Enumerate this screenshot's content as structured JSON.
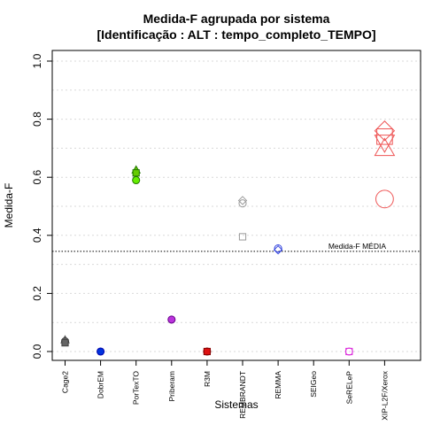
{
  "chart_data": {
    "type": "scatter",
    "title": "Medida-F agrupada por sistema",
    "subtitle": "[Identificação : ALT : tempo_completo_TEMPO]",
    "xlabel": "Sistemas",
    "ylabel": "Medida-F",
    "ylim": [
      0,
      1
    ],
    "yticks": [
      "0.0",
      "0.2",
      "0.4",
      "0.6",
      "0.8",
      "1.0"
    ],
    "grid": "horizontal-dashed",
    "categories": [
      "Cage2",
      "DobrEM",
      "PorTexTO",
      "Priberam",
      "R3M",
      "REMBRANDT",
      "REMMA",
      "SEIGeo",
      "SeRELeP",
      "XIP-L2F/Xerox"
    ],
    "reference_line": {
      "value": 0.345,
      "label": "Medida-F MÉDIA"
    },
    "points": [
      {
        "category": "Cage2",
        "y": 0.04,
        "marker": "triangle",
        "color": "#555555",
        "fill": "#777777"
      },
      {
        "category": "Cage2",
        "y": 0.035,
        "marker": "circle",
        "color": "#444444",
        "fill": "#666666"
      },
      {
        "category": "Cage2",
        "y": 0.03,
        "marker": "square",
        "color": "#444444",
        "fill": "#666666"
      },
      {
        "category": "DobrEM",
        "y": 0.0,
        "marker": "circle",
        "color": "#0000aa",
        "fill": "#0033dd"
      },
      {
        "category": "PorTexTO",
        "y": 0.625,
        "marker": "triangle",
        "color": "#227700",
        "fill": "#66cc00"
      },
      {
        "category": "PorTexTO",
        "y": 0.615,
        "marker": "square",
        "color": "#227700",
        "fill": "#66cc00"
      },
      {
        "category": "PorTexTO",
        "y": 0.59,
        "marker": "circle",
        "color": "#227700",
        "fill": "#66ee00"
      },
      {
        "category": "Priberam",
        "y": 0.11,
        "marker": "circle",
        "color": "#660088",
        "fill": "#bb33dd"
      },
      {
        "category": "R3M",
        "y": 0.0,
        "marker": "circle",
        "color": "#880000",
        "fill": "#dd1111"
      },
      {
        "category": "R3M",
        "y": 0.0,
        "marker": "square",
        "color": "#880000",
        "fill": "#dd1111"
      },
      {
        "category": "REMBRANDT",
        "y": 0.52,
        "marker": "diamond",
        "color": "#999999",
        "fill": "none"
      },
      {
        "category": "REMBRANDT",
        "y": 0.51,
        "marker": "circle",
        "color": "#999999",
        "fill": "none"
      },
      {
        "category": "REMBRANDT",
        "y": 0.395,
        "marker": "square",
        "color": "#999999",
        "fill": "none"
      },
      {
        "category": "REMMA",
        "y": 0.355,
        "marker": "circle",
        "color": "#3344dd",
        "fill": "none"
      },
      {
        "category": "REMMA",
        "y": 0.35,
        "marker": "diamond",
        "color": "#3344dd",
        "fill": "none"
      },
      {
        "category": "SeRELeP",
        "y": 0.0,
        "marker": "circle",
        "color": "#dd33dd",
        "fill": "none"
      },
      {
        "category": "SeRELeP",
        "y": 0.0,
        "marker": "square",
        "color": "#dd33dd",
        "fill": "none"
      },
      {
        "category": "XIP-L2F/Xerox",
        "y": 0.76,
        "marker": "diamond",
        "color": "#ee5555",
        "fill": "none"
      },
      {
        "category": "XIP-L2F/Xerox",
        "y": 0.74,
        "marker": "square",
        "color": "#ee5555",
        "fill": "none"
      },
      {
        "category": "XIP-L2F/Xerox",
        "y": 0.72,
        "marker": "triangle-down",
        "color": "#ee5555",
        "fill": "none"
      },
      {
        "category": "XIP-L2F/Xerox",
        "y": 0.7,
        "marker": "triangle",
        "color": "#ee5555",
        "fill": "none"
      },
      {
        "category": "XIP-L2F/Xerox",
        "y": 0.525,
        "marker": "circle",
        "color": "#ee5555",
        "fill": "none"
      }
    ]
  }
}
